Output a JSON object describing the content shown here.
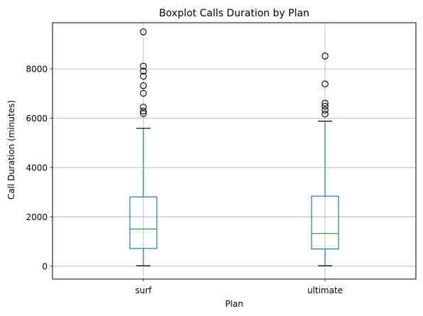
{
  "chart_data": {
    "type": "box",
    "title": "Boxplot Calls Duration by Plan",
    "xlabel": "Plan",
    "ylabel": "Call Duration (minutes)",
    "ylim": [
      -520,
      9870
    ],
    "yticks": [
      0,
      2000,
      4000,
      6000,
      8000
    ],
    "grid": true,
    "categories": [
      "surf",
      "ultimate"
    ],
    "boxes": [
      {
        "category": "surf",
        "whisker_low": 20,
        "q1": 720,
        "median": 1510,
        "q3": 2810,
        "whisker_high": 5590,
        "outliers": [
          6190,
          6290,
          6450,
          7010,
          7320,
          7700,
          7910,
          8110,
          9500
        ]
      },
      {
        "category": "ultimate",
        "whisker_low": 20,
        "q1": 700,
        "median": 1330,
        "q3": 2840,
        "whisker_high": 5880,
        "outliers": [
          6170,
          6330,
          6490,
          6610,
          7390,
          8520
        ]
      }
    ],
    "colors": {
      "box": "#1f77b4",
      "median": "#2ca02c",
      "whisker_cap": "#000000",
      "outlier_edge": "#000000",
      "grid": "#b0b0b0"
    }
  }
}
